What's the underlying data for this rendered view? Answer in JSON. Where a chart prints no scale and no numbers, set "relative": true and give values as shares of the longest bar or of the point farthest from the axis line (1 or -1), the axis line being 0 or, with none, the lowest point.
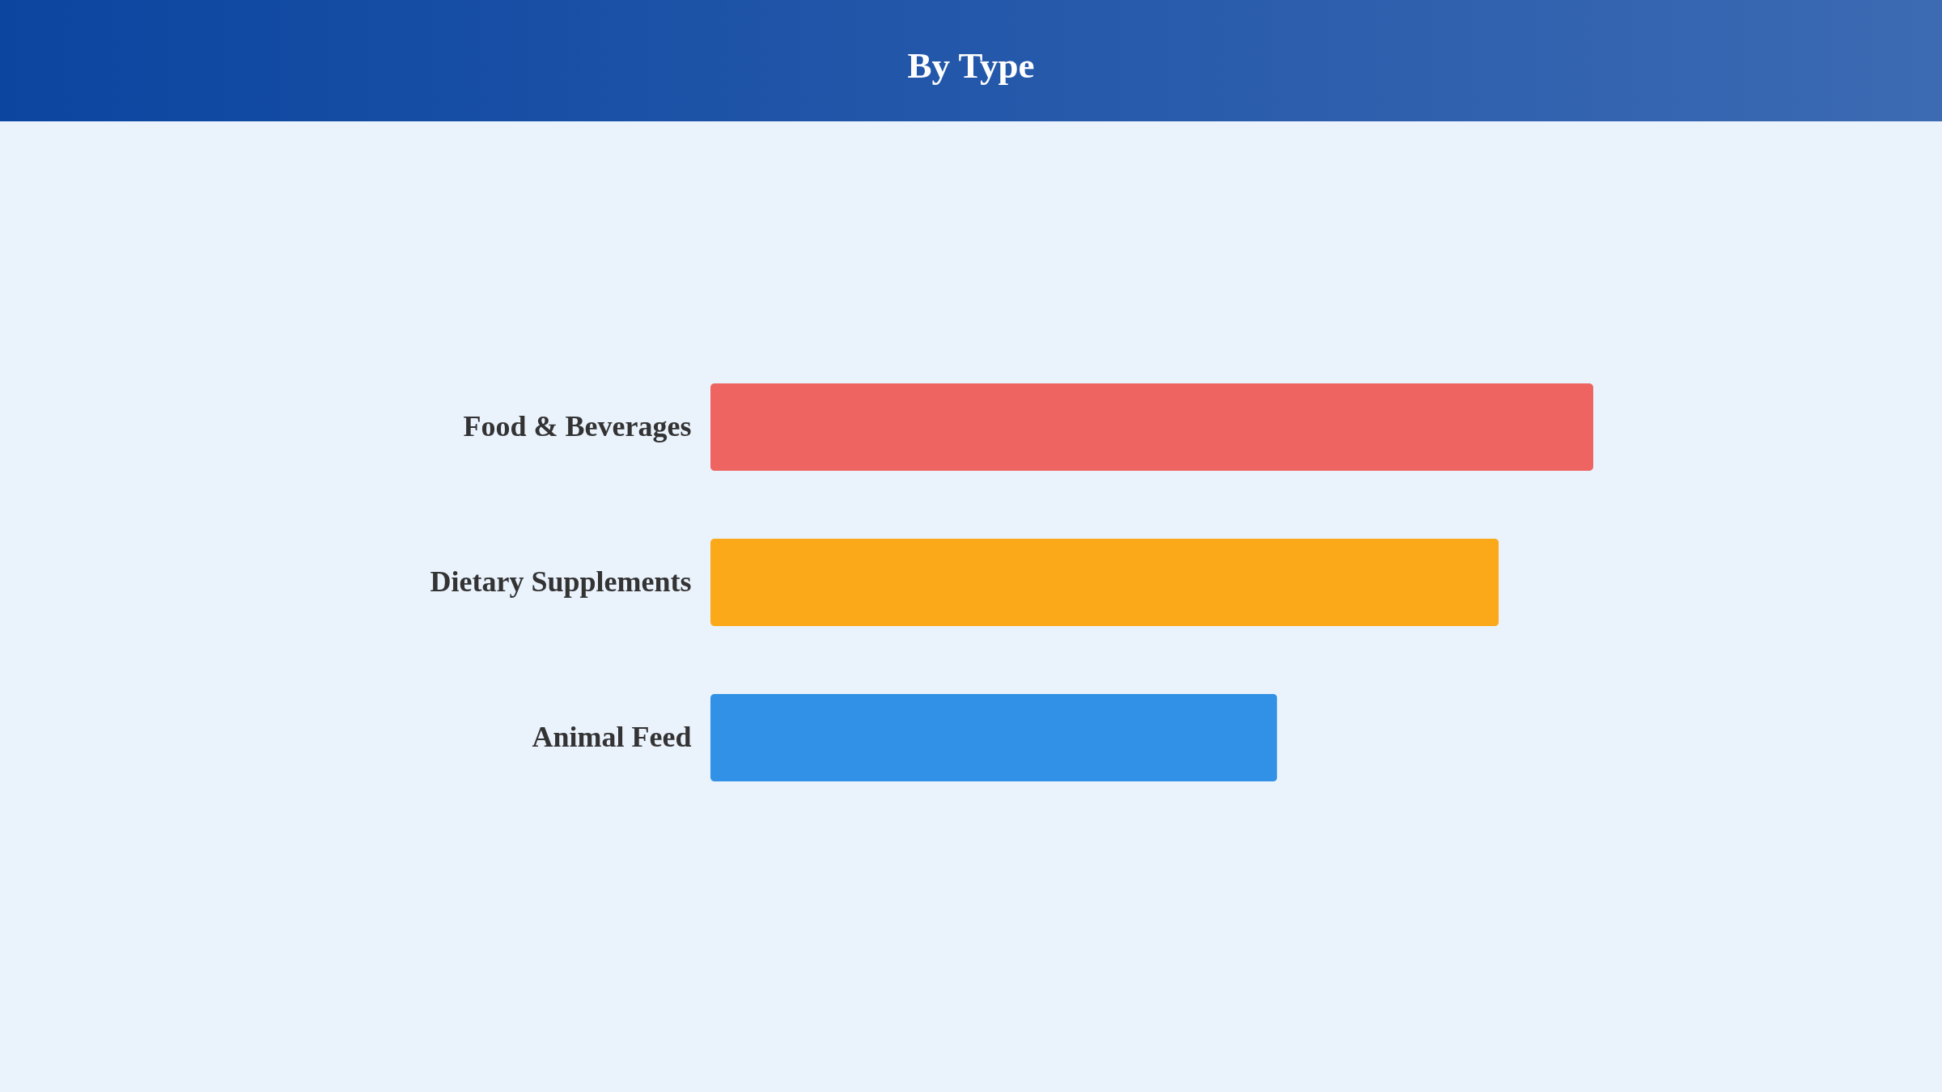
{
  "chart_data": {
    "type": "bar",
    "orientation": "horizontal",
    "relative": true,
    "title": "By Type",
    "categories": [
      "Food & Beverages",
      "Dietary Supplements",
      "Animal Feed"
    ],
    "values": [
      1,
      0.893,
      0.642
    ],
    "colors": [
      "#ee6461",
      "#fba919",
      "#3191e6"
    ]
  }
}
